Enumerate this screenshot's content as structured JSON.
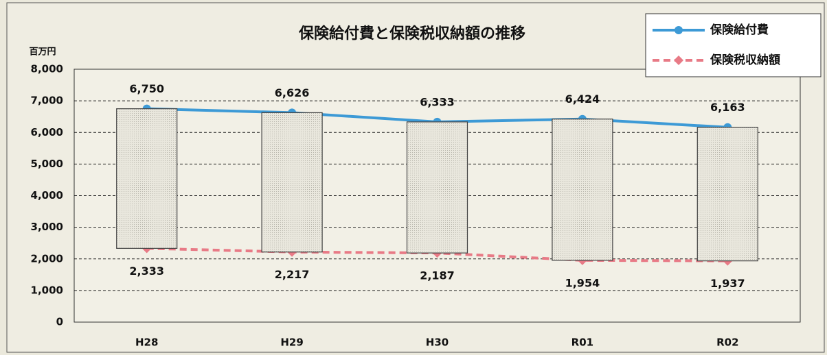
{
  "chart_data": {
    "type": "line",
    "title": "保険給付費と保険税収納額の推移",
    "y_unit": "百万円",
    "categories": [
      "H28",
      "H29",
      "H30",
      "R01",
      "R02"
    ],
    "series": [
      {
        "name": "保険給付費",
        "color": "#3d9ad6",
        "marker": "circle",
        "dash": false,
        "values": [
          6750,
          6626,
          6333,
          6424,
          6163
        ],
        "value_labels": [
          "6,750",
          "6,626",
          "6,333",
          "6,424",
          "6,163"
        ]
      },
      {
        "name": "保険税収納額",
        "color": "#e87a86",
        "marker": "diamond",
        "dash": true,
        "values": [
          2333,
          2217,
          2187,
          1954,
          1937
        ],
        "value_labels": [
          "2,333",
          "2,217",
          "2,187",
          "1,954",
          "1,937"
        ]
      }
    ],
    "up_down_bars": true,
    "ylim": [
      0,
      8000
    ],
    "yticks": [
      0,
      {
        "value": 1000,
        "label": "1,000"
      },
      {
        "value": 2000,
        "label": "2,000"
      },
      {
        "value": 3000,
        "label": "3,000"
      },
      {
        "value": 4000,
        "label": "4,000"
      },
      {
        "value": 5000,
        "label": "5,000"
      },
      {
        "value": 6000,
        "label": "6,000"
      },
      {
        "value": 7000,
        "label": "7,000"
      },
      {
        "value": 8000,
        "label": "8,000"
      }
    ],
    "grid": true,
    "legend": "top-right"
  }
}
